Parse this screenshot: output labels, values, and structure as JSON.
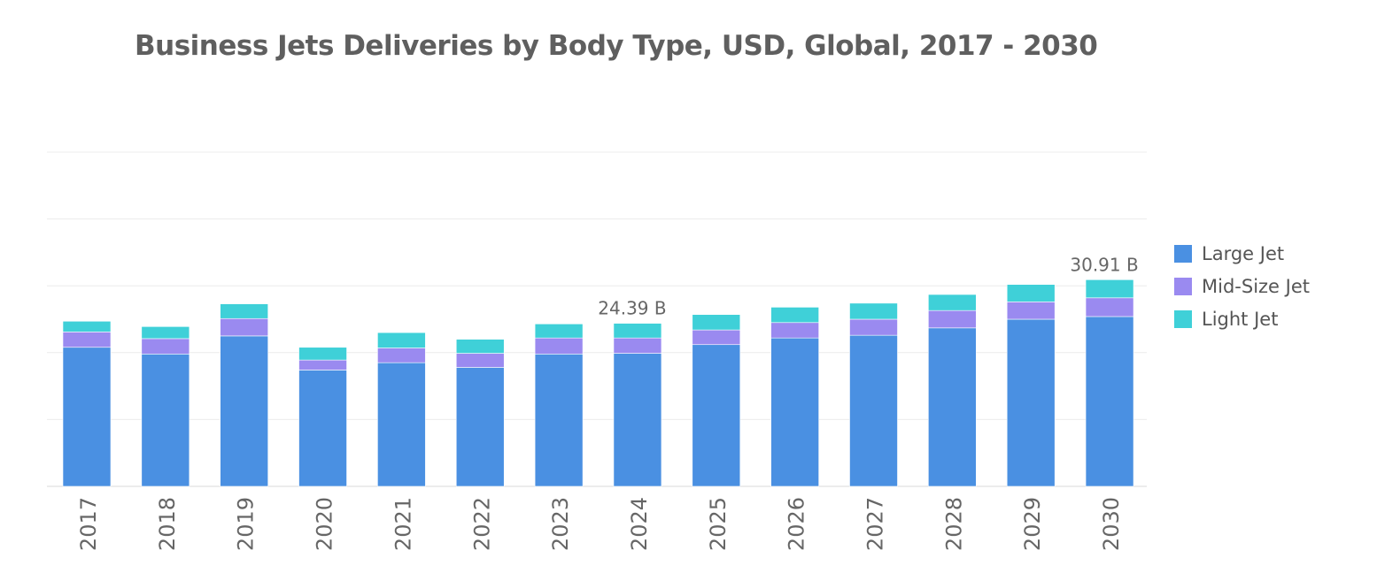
{
  "chart_data": {
    "type": "bar",
    "stacked": true,
    "title": "Business Jets Deliveries by Body Type, USD, Global, 2017 - 2030",
    "xlabel": "",
    "ylabel": "",
    "ylim": [
      0,
      50
    ],
    "grid": true,
    "legend_position": "right",
    "categories": [
      "2017",
      "2018",
      "2019",
      "2020",
      "2021",
      "2022",
      "2023",
      "2024",
      "2025",
      "2026",
      "2027",
      "2028",
      "2029",
      "2030"
    ],
    "series": [
      {
        "name": "Large Jet",
        "color": "#4a90e2",
        "values": [
          20.8,
          19.8,
          22.5,
          17.4,
          18.5,
          17.8,
          19.8,
          19.9,
          21.2,
          22.2,
          22.6,
          23.7,
          25.0,
          25.4
        ]
      },
      {
        "name": "Mid-Size Jet",
        "color": "#9a8af0",
        "values": [
          2.3,
          2.3,
          2.6,
          1.5,
          2.2,
          2.1,
          2.4,
          2.3,
          2.2,
          2.3,
          2.4,
          2.6,
          2.6,
          2.8
        ]
      },
      {
        "name": "Light Jet",
        "color": "#3fd0d8",
        "values": [
          1.6,
          1.8,
          2.2,
          1.9,
          2.3,
          2.1,
          2.1,
          2.19,
          2.3,
          2.3,
          2.4,
          2.4,
          2.6,
          2.71
        ]
      }
    ],
    "annotations": [
      {
        "category": "2024",
        "label": "24.39 B"
      },
      {
        "category": "2030",
        "label": "30.91 B"
      }
    ]
  }
}
